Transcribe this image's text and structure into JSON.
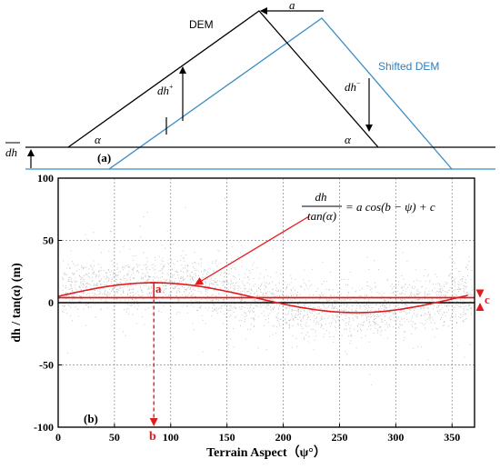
{
  "panel_a": {
    "panel_label": "(a)",
    "dem_label": "DEM",
    "shifted_dem_label": "Shifted DEM",
    "shift_label": "a",
    "dh_plus_label": "dh",
    "dh_plus_sup": "+",
    "dh_minus_label": "dh",
    "dh_minus_sup": "−",
    "mean_dh_label": "dh",
    "alpha_left": "α",
    "alpha_right": "α",
    "colors": {
      "dem": "#000000",
      "shifted": "#3b8dc4",
      "shifted_text": "#2f80c0"
    }
  },
  "panel_b": {
    "panel_label": "(b)",
    "formula_numerator": "dh",
    "formula_denominator": "tan(α)",
    "formula_rhs": "= a cos(b − ψ) + c",
    "annotation_a": "a",
    "annotation_b": "b",
    "annotation_c": "c",
    "colors": {
      "fit": "#e31a1c",
      "points": "#555555"
    }
  },
  "chart_data": {
    "type": "scatter",
    "xlabel": "Terrain Aspect（ψ°）",
    "ylabel": "dh / tan(α) (m)",
    "xlim": [
      0,
      370
    ],
    "ylim": [
      -100,
      100
    ],
    "xticks": [
      0,
      50,
      100,
      150,
      200,
      250,
      300,
      350
    ],
    "yticks": [
      100,
      50,
      0,
      -50,
      -100
    ],
    "grid": true,
    "fit": {
      "a": 12,
      "b": 85,
      "c": 4
    },
    "series": [
      {
        "x": [
          10,
          30,
          50,
          70,
          85,
          100,
          120,
          140,
          160,
          180,
          200,
          220,
          240,
          260,
          280,
          300,
          320,
          340,
          360
        ],
        "y_mean": [
          12,
          14,
          15,
          16,
          16,
          15,
          14,
          11,
          7,
          3,
          -1,
          -4,
          -6,
          -7,
          -6,
          -3,
          0,
          4,
          8
        ],
        "y_spread": [
          13,
          13,
          14,
          16,
          17,
          16,
          15,
          16,
          17,
          16,
          15,
          15,
          16,
          16,
          15,
          14,
          14,
          15,
          18
        ]
      }
    ]
  }
}
